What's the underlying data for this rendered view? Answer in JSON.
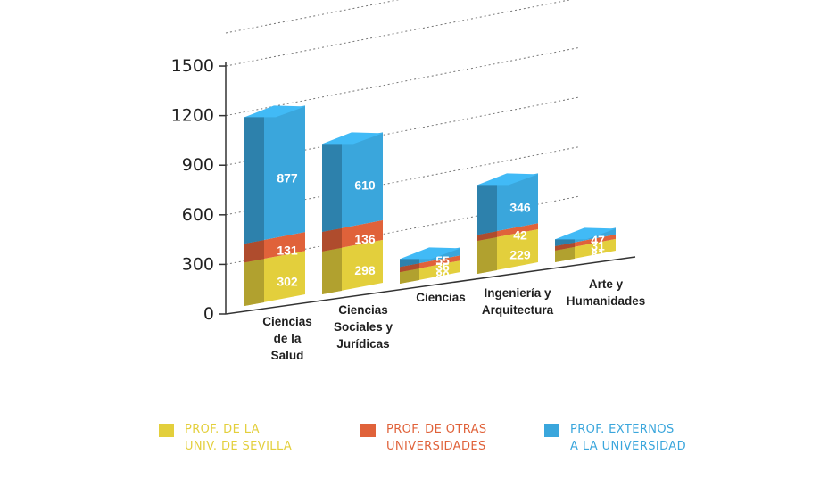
{
  "chart_data": {
    "type": "bar",
    "stacked": true,
    "three_d": true,
    "categories": [
      "Ciencias\nde la\nSalud",
      "Ciencias\nSociales y\nJurídicas",
      "Ciencias",
      "Ingeniería y\nArquitectura",
      "Arte y\nHumanidades"
    ],
    "series": [
      {
        "name": "PROF. DE LA\nUNIV. DE SEVILLA",
        "color": "#e3cf3c",
        "values": [
          302,
          298,
          80,
          229,
          81
        ]
      },
      {
        "name": "PROF. DE OTRAS\nUNIVERSIDADES",
        "color": "#e0623a",
        "values": [
          131,
          136,
          36,
          42,
          31
        ]
      },
      {
        "name": "PROF. EXTERNOS\nA LA UNIVERSIDAD",
        "color": "#3aa6dc",
        "values": [
          877,
          610,
          55,
          346,
          47
        ]
      }
    ],
    "y_ticks": [
      "0",
      "300",
      "600",
      "900",
      "1200",
      "1500"
    ],
    "ylim": [
      0,
      1500
    ],
    "grid": true,
    "legend_position": "bottom"
  },
  "legend_text_colors": [
    "#e3cf3c",
    "#e0623a",
    "#3aa6dc"
  ]
}
